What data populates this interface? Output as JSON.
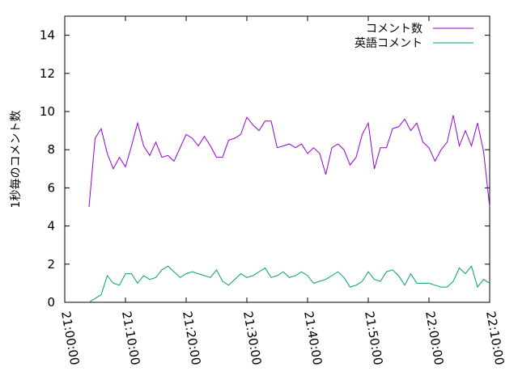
{
  "chart_data": {
    "type": "line",
    "ylabel": "1秒毎のコメント数",
    "x": [
      "21:04:00",
      "21:05:00",
      "21:06:00",
      "21:07:00",
      "21:08:00",
      "21:09:00",
      "21:10:00",
      "21:11:00",
      "21:12:00",
      "21:13:00",
      "21:14:00",
      "21:15:00",
      "21:16:00",
      "21:17:00",
      "21:18:00",
      "21:19:00",
      "21:20:00",
      "21:21:00",
      "21:22:00",
      "21:23:00",
      "21:24:00",
      "21:25:00",
      "21:26:00",
      "21:27:00",
      "21:28:00",
      "21:29:00",
      "21:30:00",
      "21:31:00",
      "21:32:00",
      "21:33:00",
      "21:34:00",
      "21:35:00",
      "21:36:00",
      "21:37:00",
      "21:38:00",
      "21:39:00",
      "21:40:00",
      "21:41:00",
      "21:42:00",
      "21:43:00",
      "21:44:00",
      "21:45:00",
      "21:46:00",
      "21:47:00",
      "21:48:00",
      "21:49:00",
      "21:50:00",
      "21:51:00",
      "21:52:00",
      "21:53:00",
      "21:54:00",
      "21:55:00",
      "21:56:00",
      "21:57:00",
      "21:58:00",
      "21:59:00",
      "22:00:00",
      "22:01:00",
      "22:02:00",
      "22:03:00",
      "22:04:00",
      "22:05:00",
      "22:06:00",
      "22:07:00",
      "22:08:00",
      "22:09:00",
      "22:10:00"
    ],
    "series": [
      {
        "name": "コメント数",
        "color": "#9400d3",
        "values": [
          5.0,
          8.6,
          9.1,
          7.8,
          7.0,
          7.6,
          7.1,
          8.2,
          9.4,
          8.2,
          7.7,
          8.4,
          7.6,
          7.7,
          7.4,
          8.1,
          8.8,
          8.6,
          8.2,
          8.7,
          8.2,
          7.6,
          7.6,
          8.5,
          8.6,
          8.8,
          9.7,
          9.3,
          9.0,
          9.5,
          9.5,
          8.1,
          8.2,
          8.3,
          8.1,
          8.3,
          7.8,
          8.1,
          7.8,
          6.7,
          8.1,
          8.3,
          8.0,
          7.2,
          7.6,
          8.8,
          9.4,
          7.0,
          8.1,
          8.1,
          9.1,
          9.2,
          9.6,
          9.0,
          9.4,
          8.4,
          8.1,
          7.4,
          8.0,
          8.4,
          9.8,
          8.2,
          9.0,
          8.2,
          9.4,
          7.9,
          5.0
        ]
      },
      {
        "name": "英語コメント",
        "color": "#009e73",
        "values": [
          0.0,
          0.2,
          0.4,
          1.4,
          1.0,
          0.9,
          1.5,
          1.5,
          1.0,
          1.4,
          1.2,
          1.3,
          1.7,
          1.9,
          1.6,
          1.3,
          1.5,
          1.6,
          1.5,
          1.4,
          1.3,
          1.7,
          1.1,
          0.9,
          1.2,
          1.5,
          1.3,
          1.4,
          1.6,
          1.8,
          1.3,
          1.4,
          1.6,
          1.3,
          1.4,
          1.6,
          1.4,
          1.0,
          1.1,
          1.2,
          1.4,
          1.6,
          1.3,
          0.8,
          0.9,
          1.1,
          1.6,
          1.2,
          1.1,
          1.6,
          1.7,
          1.4,
          0.9,
          1.5,
          1.0,
          1.0,
          1.0,
          0.9,
          0.8,
          0.8,
          1.1,
          1.8,
          1.5,
          1.9,
          0.8,
          1.2,
          1.0
        ]
      }
    ],
    "xlim": [
      "21:00:00",
      "22:10:00"
    ],
    "xticks": [
      "21:00:00",
      "21:10:00",
      "21:20:00",
      "21:30:00",
      "21:40:00",
      "21:50:00",
      "22:00:00",
      "22:10:00"
    ],
    "ylim": [
      0,
      15
    ],
    "yticks": [
      0,
      2,
      4,
      6,
      8,
      10,
      12,
      14
    ],
    "legend": "upper-right"
  }
}
